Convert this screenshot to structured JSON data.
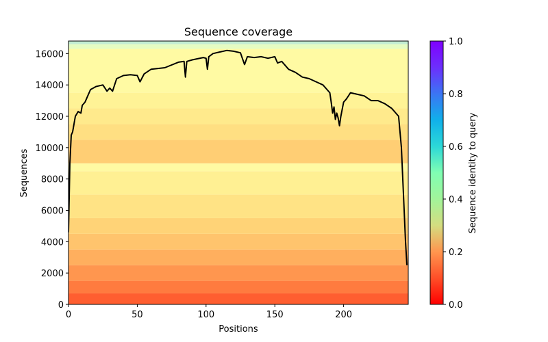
{
  "chart_data": {
    "type": "heatmap",
    "title": "Sequence coverage",
    "xlabel": "Positions",
    "ylabel": "Sequences",
    "colorbar_label": "Sequence identity to query",
    "xlim": [
      0,
      247
    ],
    "ylim": [
      0,
      16800
    ],
    "xticks": [
      "0",
      "50",
      "100",
      "150",
      "200"
    ],
    "xtick_values": [
      0,
      50,
      100,
      150,
      200
    ],
    "yticks": [
      "0",
      "2000",
      "4000",
      "6000",
      "8000",
      "10000",
      "12000",
      "14000",
      "16000"
    ],
    "ytick_values": [
      0,
      2000,
      4000,
      6000,
      8000,
      10000,
      12000,
      14000,
      16000
    ],
    "colorbar_ticks": [
      "0.0",
      "0.2",
      "0.4",
      "0.6",
      "0.8",
      "1.0"
    ],
    "colorbar_tick_values": [
      0.0,
      0.2,
      0.4,
      0.6,
      0.8,
      1.0
    ],
    "colormap": "rainbow_r",
    "coverage_line_color": "#000000",
    "identity_bands": [
      {
        "from": 0,
        "to": 700,
        "identity": 0.12
      },
      {
        "from": 700,
        "to": 1500,
        "identity": 0.16
      },
      {
        "from": 1500,
        "to": 2500,
        "identity": 0.2
      },
      {
        "from": 2500,
        "to": 3500,
        "identity": 0.24
      },
      {
        "from": 3500,
        "to": 4500,
        "identity": 0.28
      },
      {
        "from": 4500,
        "to": 5500,
        "identity": 0.31
      },
      {
        "from": 5500,
        "to": 7000,
        "identity": 0.35
      },
      {
        "from": 7000,
        "to": 8500,
        "identity": 0.39
      },
      {
        "from": 8500,
        "to": 9000,
        "identity": 0.44
      },
      {
        "from": 9000,
        "to": 10500,
        "identity": 0.3
      },
      {
        "from": 10500,
        "to": 11500,
        "identity": 0.34
      },
      {
        "from": 11500,
        "to": 12500,
        "identity": 0.37
      },
      {
        "from": 12500,
        "to": 13500,
        "identity": 0.4
      },
      {
        "from": 13500,
        "to": 16300,
        "identity": 0.44
      },
      {
        "from": 16300,
        "to": 16600,
        "identity": 0.55
      },
      {
        "from": 16600,
        "to": 16800,
        "identity": 0.62
      }
    ],
    "coverage": {
      "x": [
        0,
        1,
        2,
        3,
        5,
        7,
        9,
        10,
        12,
        14,
        16,
        20,
        25,
        28,
        30,
        32,
        35,
        40,
        45,
        50,
        52,
        55,
        60,
        70,
        80,
        84,
        85,
        86,
        90,
        98,
        100,
        101,
        102,
        105,
        110,
        115,
        120,
        125,
        128,
        130,
        135,
        140,
        145,
        150,
        152,
        155,
        160,
        165,
        170,
        175,
        180,
        185,
        190,
        191,
        192,
        193,
        194,
        195,
        196,
        197,
        198,
        200,
        202,
        205,
        210,
        215,
        220,
        225,
        230,
        235,
        240,
        242,
        244,
        245,
        246
      ],
      "y": [
        4600,
        9000,
        10800,
        11000,
        12000,
        12300,
        12200,
        12700,
        12900,
        13300,
        13700,
        13900,
        14000,
        13600,
        13800,
        13600,
        14400,
        14600,
        14650,
        14600,
        14200,
        14700,
        15000,
        15100,
        15450,
        15500,
        14500,
        15500,
        15600,
        15750,
        15700,
        15000,
        15800,
        16000,
        16100,
        16200,
        16150,
        16050,
        15300,
        15800,
        15750,
        15800,
        15700,
        15800,
        15400,
        15500,
        15000,
        14800,
        14500,
        14400,
        14200,
        14000,
        13500,
        12900,
        12200,
        12600,
        11800,
        12200,
        11900,
        11400,
        12000,
        12900,
        13100,
        13500,
        13400,
        13300,
        13000,
        13000,
        12800,
        12500,
        12000,
        10000,
        6000,
        4000,
        2500
      ]
    }
  }
}
